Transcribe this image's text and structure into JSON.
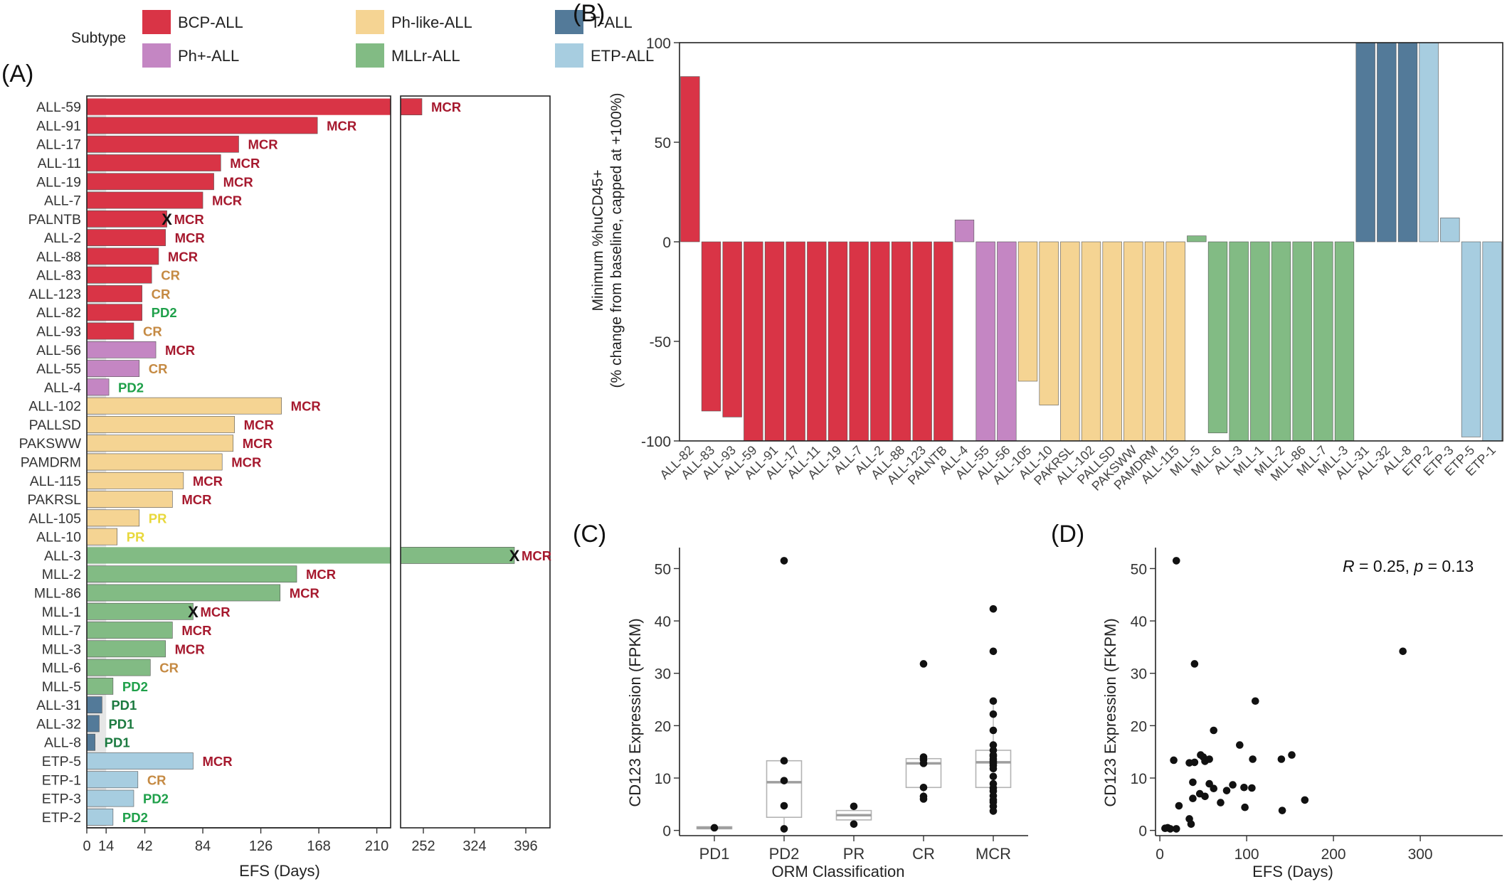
{
  "colors": {
    "BCP-ALL": "#d93446",
    "Ph+-ALL": "#c486c3",
    "Ph-like-ALL": "#f5d493",
    "MLLr-ALL": "#82bb84",
    "T-ALL": "#537a99",
    "ETP-ALL": "#a7cde0",
    "MCR": "#a6192e",
    "CR": "#c58a43",
    "PR": "#e8d83c",
    "PD2": "#1fa04a",
    "PD1": "#1c7a40"
  },
  "legend": {
    "title": "Subtype",
    "items": [
      "BCP-ALL",
      "Ph-like-ALL",
      "T-ALL",
      "Ph+-ALL",
      "MLLr-ALL",
      "ETP-ALL"
    ]
  },
  "panel_labels": {
    "a": "(A)",
    "b": "(B)",
    "c": "(C)",
    "d": "(D)"
  },
  "chart_data": [
    {
      "panel": "(A)",
      "type": "bar",
      "orientation": "horizontal",
      "xlabel": "EFS (Days)",
      "x_ticks_left": [
        0,
        14,
        42,
        84,
        126,
        168,
        210
      ],
      "x_ticks_right": [
        252,
        324,
        396
      ],
      "broken_axis": {
        "left_range": [
          0,
          220
        ],
        "right_range": [
          220,
          430
        ]
      },
      "event_marker": "X",
      "bars": [
        {
          "label": "ALL-59",
          "value": 250,
          "subtype": "BCP-ALL",
          "response": "MCR",
          "event": false
        },
        {
          "label": "ALL-91",
          "value": 167,
          "subtype": "BCP-ALL",
          "response": "MCR",
          "event": false
        },
        {
          "label": "ALL-17",
          "value": 110,
          "subtype": "BCP-ALL",
          "response": "MCR",
          "event": false
        },
        {
          "label": "ALL-11",
          "value": 97,
          "subtype": "BCP-ALL",
          "response": "MCR",
          "event": false
        },
        {
          "label": "ALL-19",
          "value": 92,
          "subtype": "BCP-ALL",
          "response": "MCR",
          "event": false
        },
        {
          "label": "ALL-7",
          "value": 84,
          "subtype": "BCP-ALL",
          "response": "MCR",
          "event": false
        },
        {
          "label": "PALNTB",
          "value": 58,
          "subtype": "BCP-ALL",
          "response": "MCR",
          "event": true
        },
        {
          "label": "ALL-2",
          "value": 57,
          "subtype": "BCP-ALL",
          "response": "MCR",
          "event": false
        },
        {
          "label": "ALL-88",
          "value": 52,
          "subtype": "BCP-ALL",
          "response": "MCR",
          "event": false
        },
        {
          "label": "ALL-83",
          "value": 47,
          "subtype": "BCP-ALL",
          "response": "CR",
          "event": false
        },
        {
          "label": "ALL-123",
          "value": 40,
          "subtype": "BCP-ALL",
          "response": "CR",
          "event": false
        },
        {
          "label": "ALL-82",
          "value": 40,
          "subtype": "BCP-ALL",
          "response": "PD2",
          "event": false
        },
        {
          "label": "ALL-93",
          "value": 34,
          "subtype": "BCP-ALL",
          "response": "CR",
          "event": false
        },
        {
          "label": "ALL-56",
          "value": 50,
          "subtype": "Ph+-ALL",
          "response": "MCR",
          "event": false
        },
        {
          "label": "ALL-55",
          "value": 38,
          "subtype": "Ph+-ALL",
          "response": "CR",
          "event": false
        },
        {
          "label": "ALL-4",
          "value": 16,
          "subtype": "Ph+-ALL",
          "response": "PD2",
          "event": false
        },
        {
          "label": "ALL-102",
          "value": 141,
          "subtype": "Ph-like-ALL",
          "response": "MCR",
          "event": false
        },
        {
          "label": "PALLSD",
          "value": 107,
          "subtype": "Ph-like-ALL",
          "response": "MCR",
          "event": false
        },
        {
          "label": "PAKSWW",
          "value": 106,
          "subtype": "Ph-like-ALL",
          "response": "MCR",
          "event": false
        },
        {
          "label": "PAMDRM",
          "value": 98,
          "subtype": "Ph-like-ALL",
          "response": "MCR",
          "event": false
        },
        {
          "label": "ALL-115",
          "value": 70,
          "subtype": "Ph-like-ALL",
          "response": "MCR",
          "event": false
        },
        {
          "label": "PAKRSL",
          "value": 62,
          "subtype": "Ph-like-ALL",
          "response": "MCR",
          "event": false
        },
        {
          "label": "ALL-105",
          "value": 38,
          "subtype": "Ph-like-ALL",
          "response": "PR",
          "event": false
        },
        {
          "label": "ALL-10",
          "value": 22,
          "subtype": "Ph-like-ALL",
          "response": "PR",
          "event": false
        },
        {
          "label": "ALL-3",
          "value": 380,
          "subtype": "MLLr-ALL",
          "response": "MCR",
          "event": true
        },
        {
          "label": "MLL-2",
          "value": 152,
          "subtype": "MLLr-ALL",
          "response": "MCR",
          "event": false
        },
        {
          "label": "MLL-86",
          "value": 140,
          "subtype": "MLLr-ALL",
          "response": "MCR",
          "event": false
        },
        {
          "label": "MLL-1",
          "value": 77,
          "subtype": "MLLr-ALL",
          "response": "MCR",
          "event": true
        },
        {
          "label": "MLL-7",
          "value": 62,
          "subtype": "MLLr-ALL",
          "response": "MCR",
          "event": false
        },
        {
          "label": "MLL-3",
          "value": 57,
          "subtype": "MLLr-ALL",
          "response": "MCR",
          "event": false
        },
        {
          "label": "MLL-6",
          "value": 46,
          "subtype": "MLLr-ALL",
          "response": "CR",
          "event": false
        },
        {
          "label": "MLL-5",
          "value": 19,
          "subtype": "MLLr-ALL",
          "response": "PD2",
          "event": false
        },
        {
          "label": "ALL-31",
          "value": 11,
          "subtype": "T-ALL",
          "response": "PD1",
          "event": false
        },
        {
          "label": "ALL-32",
          "value": 9,
          "subtype": "T-ALL",
          "response": "PD1",
          "event": false
        },
        {
          "label": "ALL-8",
          "value": 6,
          "subtype": "T-ALL",
          "response": "PD1",
          "event": false
        },
        {
          "label": "ETP-5",
          "value": 77,
          "subtype": "ETP-ALL",
          "response": "MCR",
          "event": false
        },
        {
          "label": "ETP-1",
          "value": 37,
          "subtype": "ETP-ALL",
          "response": "CR",
          "event": false
        },
        {
          "label": "ETP-3",
          "value": 34,
          "subtype": "ETP-ALL",
          "response": "PD2",
          "event": false
        },
        {
          "label": "ETP-2",
          "value": 19,
          "subtype": "ETP-ALL",
          "response": "PD2",
          "event": false
        }
      ]
    },
    {
      "panel": "(B)",
      "type": "bar",
      "ylabel_line1": "Minimum %huCD45+",
      "ylabel_line2": "(% change from baseline, capped at +100%)",
      "ylim": [
        -100,
        100
      ],
      "y_ticks": [
        100,
        50,
        0,
        -50,
        -100
      ],
      "bars": [
        {
          "label": "ALL-82",
          "value": 83,
          "subtype": "BCP-ALL"
        },
        {
          "label": "ALL-83",
          "value": -85,
          "subtype": "BCP-ALL"
        },
        {
          "label": "ALL-93",
          "value": -88,
          "subtype": "BCP-ALL"
        },
        {
          "label": "ALL-59",
          "value": -100,
          "subtype": "BCP-ALL"
        },
        {
          "label": "ALL-91",
          "value": -100,
          "subtype": "BCP-ALL"
        },
        {
          "label": "ALL-17",
          "value": -100,
          "subtype": "BCP-ALL"
        },
        {
          "label": "ALL-11",
          "value": -100,
          "subtype": "BCP-ALL"
        },
        {
          "label": "ALL-19",
          "value": -100,
          "subtype": "BCP-ALL"
        },
        {
          "label": "ALL-7",
          "value": -100,
          "subtype": "BCP-ALL"
        },
        {
          "label": "ALL-2",
          "value": -100,
          "subtype": "BCP-ALL"
        },
        {
          "label": "ALL-88",
          "value": -100,
          "subtype": "BCP-ALL"
        },
        {
          "label": "ALL-123",
          "value": -100,
          "subtype": "BCP-ALL"
        },
        {
          "label": "PALNTB",
          "value": -100,
          "subtype": "BCP-ALL"
        },
        {
          "label": "ALL-4",
          "value": 11,
          "subtype": "Ph+-ALL"
        },
        {
          "label": "ALL-55",
          "value": -100,
          "subtype": "Ph+-ALL"
        },
        {
          "label": "ALL-56",
          "value": -100,
          "subtype": "Ph+-ALL"
        },
        {
          "label": "ALL-105",
          "value": -70,
          "subtype": "Ph-like-ALL"
        },
        {
          "label": "ALL-10",
          "value": -82,
          "subtype": "Ph-like-ALL"
        },
        {
          "label": "PAKRSL",
          "value": -100,
          "subtype": "Ph-like-ALL"
        },
        {
          "label": "ALL-102",
          "value": -100,
          "subtype": "Ph-like-ALL"
        },
        {
          "label": "PALLSD",
          "value": -100,
          "subtype": "Ph-like-ALL"
        },
        {
          "label": "PAKSWW",
          "value": -100,
          "subtype": "Ph-like-ALL"
        },
        {
          "label": "PAMDRM",
          "value": -100,
          "subtype": "Ph-like-ALL"
        },
        {
          "label": "ALL-115",
          "value": -100,
          "subtype": "Ph-like-ALL"
        },
        {
          "label": "MLL-5",
          "value": 3,
          "subtype": "MLLr-ALL"
        },
        {
          "label": "MLL-6",
          "value": -96,
          "subtype": "MLLr-ALL"
        },
        {
          "label": "ALL-3",
          "value": -100,
          "subtype": "MLLr-ALL"
        },
        {
          "label": "MLL-1",
          "value": -100,
          "subtype": "MLLr-ALL"
        },
        {
          "label": "MLL-2",
          "value": -100,
          "subtype": "MLLr-ALL"
        },
        {
          "label": "MLL-86",
          "value": -100,
          "subtype": "MLLr-ALL"
        },
        {
          "label": "MLL-7",
          "value": -100,
          "subtype": "MLLr-ALL"
        },
        {
          "label": "MLL-3",
          "value": -100,
          "subtype": "MLLr-ALL"
        },
        {
          "label": "ALL-31",
          "value": 100,
          "subtype": "T-ALL"
        },
        {
          "label": "ALL-32",
          "value": 100,
          "subtype": "T-ALL"
        },
        {
          "label": "ALL-8",
          "value": 100,
          "subtype": "T-ALL"
        },
        {
          "label": "ETP-2",
          "value": 100,
          "subtype": "ETP-ALL"
        },
        {
          "label": "ETP-3",
          "value": 12,
          "subtype": "ETP-ALL"
        },
        {
          "label": "ETP-5",
          "value": -98,
          "subtype": "ETP-ALL"
        },
        {
          "label": "ETP-1",
          "value": -100,
          "subtype": "ETP-ALL"
        }
      ]
    },
    {
      "panel": "(C)",
      "type": "box",
      "xlabel": "ORM Classification",
      "ylabel": "CD123 Expression (FPKM)",
      "ylim": [
        -1,
        54
      ],
      "y_ticks": [
        0,
        10,
        20,
        30,
        40,
        50
      ],
      "groups": [
        {
          "name": "PD1",
          "q1": 0.3,
          "median": 0.5,
          "q3": 0.7,
          "whisker_low": 0.3,
          "whisker_high": 0.7,
          "points": [
            0.5
          ]
        },
        {
          "name": "PD2",
          "q1": 2.5,
          "median": 9.2,
          "q3": 13.3,
          "whisker_low": 0.3,
          "whisker_high": 13.3,
          "points": [
            51.5,
            13.3,
            9.5,
            4.7,
            0.3
          ]
        },
        {
          "name": "PR",
          "q1": 2.0,
          "median": 2.9,
          "q3": 3.8,
          "whisker_low": 1.2,
          "whisker_high": 4.6,
          "points": [
            4.6,
            1.2
          ]
        },
        {
          "name": "CR",
          "q1": 8.2,
          "median": 12.8,
          "q3": 13.7,
          "whisker_low": 6.0,
          "whisker_high": 14.0,
          "points": [
            31.8,
            14.0,
            13.5,
            12.8,
            8.2,
            6.5,
            6.0
          ]
        },
        {
          "name": "MCR",
          "q1": 8.2,
          "median": 13.0,
          "q3": 15.3,
          "whisker_low": 3.7,
          "whisker_high": 24.7,
          "points": [
            42.3,
            34.2,
            24.7,
            22.2,
            19.1,
            16.3,
            15.3,
            14.4,
            14.2,
            13.6,
            13.2,
            12.8,
            12.4,
            11.8,
            10.3,
            8.9,
            8.1,
            7.5,
            6.6,
            5.8,
            5.4,
            4.6,
            3.7
          ]
        }
      ]
    },
    {
      "panel": "(D)",
      "type": "scatter",
      "xlabel": "EFS (Days)",
      "ylabel": "CD123 Expression (FKPM)",
      "xlim": [
        -5,
        395
      ],
      "ylim": [
        -1,
        54
      ],
      "x_ticks": [
        0,
        100,
        200,
        300
      ],
      "y_ticks": [
        0,
        10,
        20,
        30,
        40,
        50
      ],
      "annotation": {
        "R": "R",
        "r_value": " = 0.25, ",
        "p": "p",
        "p_value": " = 0.13"
      },
      "points": [
        [
          6,
          0.4
        ],
        [
          9,
          0.5
        ],
        [
          12,
          0.3
        ],
        [
          19,
          0.3
        ],
        [
          16,
          13.4
        ],
        [
          19,
          51.5
        ],
        [
          22,
          4.7
        ],
        [
          34,
          12.9
        ],
        [
          34,
          2.2
        ],
        [
          36,
          1.2
        ],
        [
          38,
          9.2
        ],
        [
          38,
          6.1
        ],
        [
          40,
          31.8
        ],
        [
          40,
          13.0
        ],
        [
          46,
          7.0
        ],
        [
          47,
          14.4
        ],
        [
          50,
          14.0
        ],
        [
          52,
          6.5
        ],
        [
          52,
          13.2
        ],
        [
          57,
          13.6
        ],
        [
          57,
          8.9
        ],
        [
          62,
          19.1
        ],
        [
          62,
          8.0
        ],
        [
          70,
          5.3
        ],
        [
          77,
          7.6
        ],
        [
          84,
          8.7
        ],
        [
          92,
          16.3
        ],
        [
          97,
          8.2
        ],
        [
          98,
          4.4
        ],
        [
          106,
          8.1
        ],
        [
          107,
          13.6
        ],
        [
          110,
          24.7
        ],
        [
          140,
          13.6
        ],
        [
          141,
          3.8
        ],
        [
          152,
          14.4
        ],
        [
          167,
          5.8
        ],
        [
          280,
          34.2
        ]
      ]
    }
  ]
}
